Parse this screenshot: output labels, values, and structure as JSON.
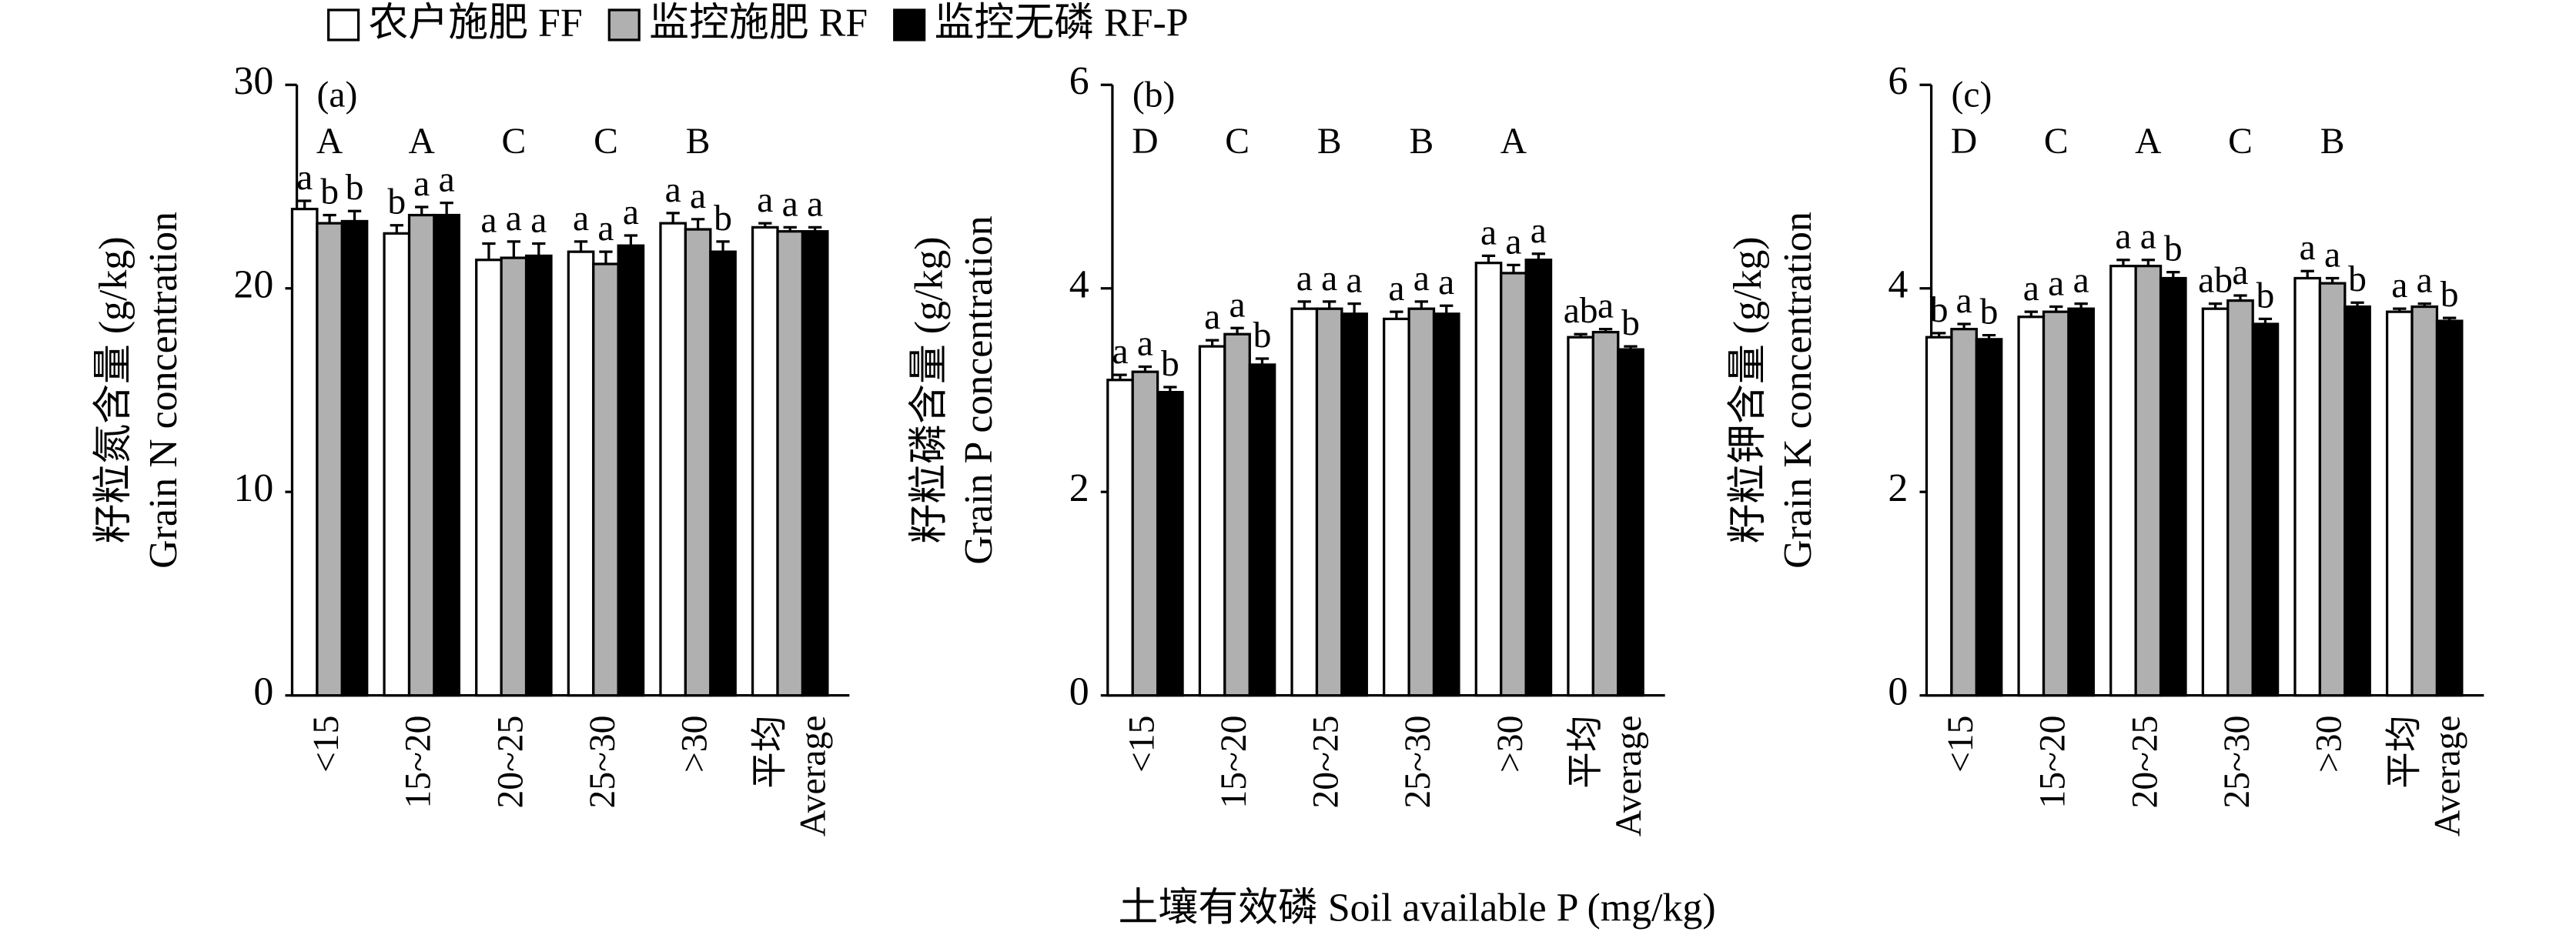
{
  "legend": [
    {
      "name": "农户施肥 FF",
      "color": "#ffffff"
    },
    {
      "name": "监控施肥 RF",
      "color": "#b0b0b0"
    },
    {
      "name": "监控无磷 RF-P",
      "color": "#000000"
    }
  ],
  "x_label": "土壤有效磷 Soil available P (mg/kg)",
  "chart_data": [
    {
      "type": "bar",
      "panel": "(a)",
      "y_label": [
        "籽粒氮含量 (g/kg)",
        "Grain N concentration"
      ],
      "categories": [
        "<15",
        "15~20",
        "20~25",
        "25~30",
        ">30",
        [
          "平均",
          "Average"
        ]
      ],
      "group_letters": [
        "A",
        "A",
        "C",
        "C",
        "B",
        null
      ],
      "ylim": [
        0,
        30
      ],
      "yticks": [
        0,
        10,
        20,
        30
      ],
      "series": [
        {
          "values": [
            23.9,
            22.7,
            21.4,
            21.8,
            23.2,
            23.0
          ],
          "errors": [
            0.4,
            0.4,
            0.8,
            0.5,
            0.5,
            0.2
          ],
          "letters": [
            "a",
            "b",
            "a",
            "a",
            "a",
            "a"
          ]
        },
        {
          "values": [
            23.2,
            23.6,
            21.5,
            21.2,
            22.9,
            22.8
          ],
          "errors": [
            0.4,
            0.4,
            0.8,
            0.6,
            0.5,
            0.2
          ],
          "letters": [
            "b",
            "a",
            "a",
            "a",
            "a",
            "a"
          ]
        },
        {
          "values": [
            23.3,
            23.6,
            21.6,
            22.1,
            21.8,
            22.8
          ],
          "errors": [
            0.5,
            0.6,
            0.6,
            0.5,
            0.5,
            0.2
          ],
          "letters": [
            "b",
            "a",
            "a",
            "a",
            "b",
            "a"
          ]
        }
      ]
    },
    {
      "type": "bar",
      "panel": "(b)",
      "y_label": [
        "籽粒磷含量 (g/kg)",
        "Grain P concentration"
      ],
      "categories": [
        "<15",
        "15~20",
        "20~25",
        "25~30",
        ">30",
        [
          "平均",
          "Average"
        ]
      ],
      "group_letters": [
        "D",
        "C",
        "B",
        "B",
        "A",
        null
      ],
      "ylim": [
        0,
        6
      ],
      "yticks": [
        0,
        2,
        4,
        6
      ],
      "series": [
        {
          "values": [
            3.1,
            3.43,
            3.8,
            3.7,
            4.25,
            3.52
          ],
          "errors": [
            0.05,
            0.06,
            0.07,
            0.07,
            0.07,
            0.03
          ],
          "letters": [
            "a",
            "a",
            "a",
            "a",
            "a",
            "ab"
          ]
        },
        {
          "values": [
            3.18,
            3.55,
            3.8,
            3.8,
            4.15,
            3.57
          ],
          "errors": [
            0.05,
            0.06,
            0.07,
            0.07,
            0.08,
            0.03
          ],
          "letters": [
            "a",
            "a",
            "a",
            "a",
            "a",
            "a"
          ]
        },
        {
          "values": [
            2.98,
            3.25,
            3.75,
            3.75,
            4.28,
            3.4
          ],
          "errors": [
            0.05,
            0.06,
            0.1,
            0.08,
            0.06,
            0.03
          ],
          "letters": [
            "b",
            "b",
            "a",
            "a",
            "a",
            "b"
          ]
        }
      ]
    },
    {
      "type": "bar",
      "panel": "(c)",
      "y_label": [
        "籽粒钾含量 (g/kg)",
        "Grain K concentration"
      ],
      "categories": [
        "<15",
        "15~20",
        "20~25",
        "25~30",
        ">30",
        [
          "平均",
          "Average"
        ]
      ],
      "group_letters": [
        "D",
        "C",
        "A",
        "C",
        "B",
        null
      ],
      "ylim": [
        0,
        6
      ],
      "yticks": [
        0,
        2,
        4,
        6
      ],
      "series": [
        {
          "values": [
            3.52,
            3.72,
            4.22,
            3.8,
            4.1,
            3.77
          ],
          "errors": [
            0.04,
            0.05,
            0.06,
            0.05,
            0.07,
            0.03
          ],
          "letters": [
            "b",
            "a",
            "a",
            "ab",
            "a",
            "a"
          ]
        },
        {
          "values": [
            3.6,
            3.77,
            4.22,
            3.88,
            4.05,
            3.82
          ],
          "errors": [
            0.05,
            0.05,
            0.06,
            0.05,
            0.05,
            0.03
          ],
          "letters": [
            "a",
            "a",
            "a",
            "a",
            "a",
            "a"
          ]
        },
        {
          "values": [
            3.5,
            3.8,
            4.1,
            3.65,
            3.82,
            3.68
          ],
          "errors": [
            0.04,
            0.05,
            0.06,
            0.05,
            0.04,
            0.03
          ],
          "letters": [
            "b",
            "a",
            "b",
            "b",
            "b",
            "b"
          ]
        }
      ]
    }
  ]
}
